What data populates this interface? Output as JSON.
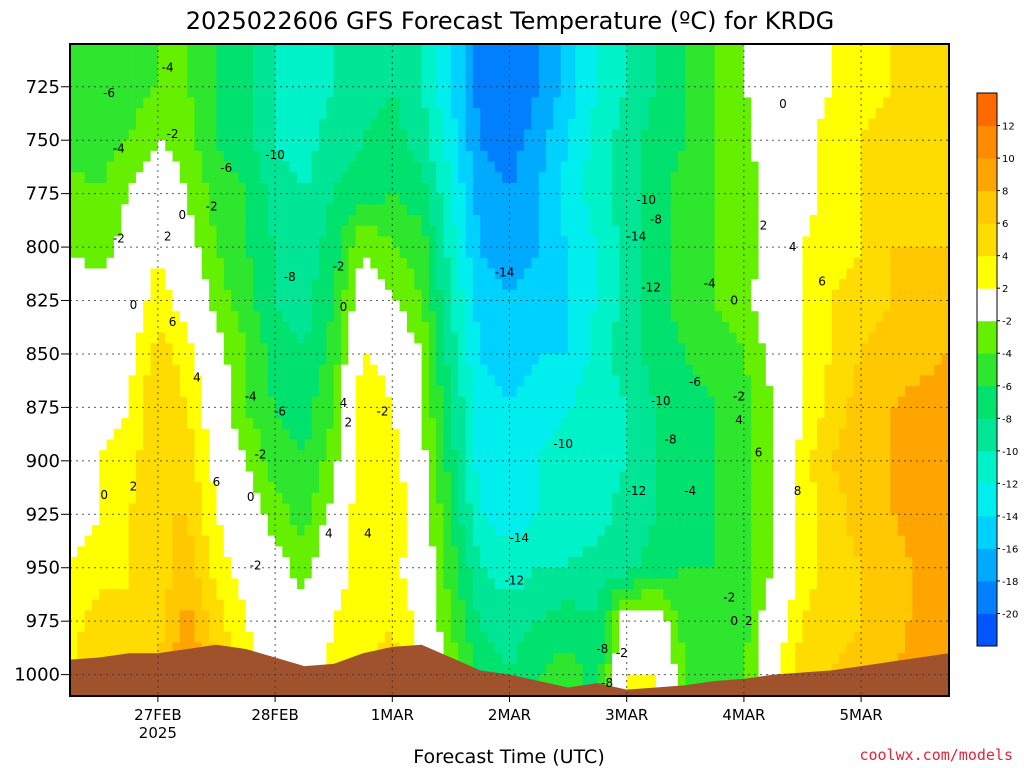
{
  "title": "2025022606 GFS Forecast Temperature (ºC) for KRDG",
  "credit": "coolwx.com/models",
  "chart_data": {
    "type": "heatmap",
    "title": "2025022606 GFS Forecast Temperature (ºC) for KRDG",
    "xlabel": "Forecast Time (UTC)",
    "ylabel": "",
    "yaxis": {
      "ticks": [
        "725",
        "750",
        "775",
        "800",
        "825",
        "850",
        "875",
        "900",
        "925",
        "950",
        "975",
        "1000"
      ],
      "range": [
        705,
        1010
      ],
      "inverted": true,
      "gridlines": true
    },
    "xaxis": {
      "ticks": [
        {
          "label": "27FEB",
          "sub": "2025",
          "t": 18
        },
        {
          "label": "28FEB",
          "sub": "",
          "t": 42
        },
        {
          "label": "1MAR",
          "sub": "",
          "t": 66
        },
        {
          "label": "2MAR",
          "sub": "",
          "t": 90
        },
        {
          "label": "3MAR",
          "sub": "",
          "t": 114
        },
        {
          "label": "4MAR",
          "sub": "",
          "t": 138
        },
        {
          "label": "5MAR",
          "sub": "",
          "t": 162
        }
      ],
      "range": [
        0,
        180
      ],
      "units": "hours since 2025-02-26 06 UTC",
      "gridlines": true
    },
    "colorbar": {
      "levels": [
        -20,
        -18,
        -16,
        -14,
        -12,
        -10,
        -8,
        -6,
        -4,
        -2,
        2,
        4,
        6,
        8,
        10,
        12
      ],
      "colors": [
        "#0055ff",
        "#0080ff",
        "#00aaff",
        "#00d2ff",
        "#00eeee",
        "#00f2c8",
        "#00e696",
        "#00e16e",
        "#2de62d",
        "#64f000",
        "#ffffff",
        "#ffff00",
        "#ffdc00",
        "#ffc800",
        "#ffa500",
        "#ff8c00",
        "#ff6a00"
      ]
    },
    "ground_color": "#a0522d",
    "series": [
      {
        "pressure": 725,
        "values": [
          -6,
          -6,
          -5,
          -4,
          -4,
          -6,
          -7,
          -10,
          -11,
          -10,
          -9,
          -8,
          -10,
          -14,
          -19,
          -20,
          -18,
          -15,
          -12,
          -10,
          -8,
          -6,
          -4,
          -2,
          0,
          1,
          2,
          3,
          4,
          5
        ]
      },
      {
        "pressure": 750,
        "values": [
          -5,
          -5,
          -4,
          -2,
          -3,
          -6,
          -7,
          -10,
          -11,
          -9,
          -8,
          -7,
          -9,
          -13,
          -18,
          -19,
          -17,
          -14,
          -11,
          -9,
          -7,
          -6,
          -4,
          -3,
          0,
          1,
          3,
          4,
          5,
          6
        ]
      },
      {
        "pressure": 775,
        "values": [
          -3,
          -4,
          -2,
          0,
          -2,
          -5,
          -6,
          -9,
          -10,
          -8,
          -7,
          -6,
          -7,
          -12,
          -17,
          -18,
          -16,
          -13,
          -11,
          -9,
          -7,
          -5,
          -4,
          -3,
          -1,
          1,
          3,
          4,
          5,
          6
        ]
      },
      {
        "pressure": 800,
        "values": [
          -2,
          -3,
          -1,
          2,
          -1,
          -4,
          -6,
          -8,
          -9,
          -7,
          -2,
          -4,
          -5,
          -11,
          -16,
          -17,
          -16,
          -14,
          -12,
          -9,
          -7,
          -5,
          -4,
          -3,
          -1,
          2,
          3,
          4,
          6,
          6
        ]
      },
      {
        "pressure": 825,
        "values": [
          -1,
          -1,
          0,
          3,
          1,
          -3,
          -5,
          -8,
          -9,
          -6,
          0,
          -2,
          -4,
          -10,
          -15,
          -16,
          -15,
          -14,
          -12,
          -9,
          -7,
          -5,
          -4,
          -3,
          0,
          2,
          4,
          5,
          6,
          7
        ]
      },
      {
        "pressure": 850,
        "values": [
          -1,
          0,
          1,
          5,
          3,
          -1,
          -4,
          -7,
          -8,
          -5,
          2,
          1,
          -2,
          -9,
          -14,
          -15,
          -14,
          -14,
          -11,
          -9,
          -7,
          -6,
          -5,
          -4,
          -1,
          2,
          4,
          6,
          7,
          8
        ]
      },
      {
        "pressure": 875,
        "values": [
          0,
          1,
          2,
          6,
          4,
          0,
          -4,
          -6,
          -7,
          -4,
          4,
          2,
          -2,
          -8,
          -13,
          -14,
          -13,
          -12,
          -11,
          -10,
          -8,
          -7,
          -6,
          -5,
          -2,
          2,
          5,
          7,
          8,
          9
        ]
      },
      {
        "pressure": 900,
        "values": [
          1,
          2,
          3,
          6,
          5,
          1,
          -2,
          -5,
          -6,
          -3,
          4,
          3,
          -1,
          -7,
          -13,
          -14,
          -12,
          -11,
          -11,
          -10,
          -8,
          -7,
          -6,
          -5,
          -2,
          3,
          6,
          7,
          8,
          9
        ]
      },
      {
        "pressure": 925,
        "values": [
          1,
          2,
          4,
          6,
          6,
          2,
          0,
          -3,
          -5,
          -1,
          4,
          4,
          0,
          -6,
          -12,
          -13,
          -12,
          -11,
          -11,
          -9,
          -8,
          -7,
          -6,
          -5,
          -2,
          3,
          5,
          7,
          8,
          9
        ]
      },
      {
        "pressure": 950,
        "values": [
          2,
          3,
          4,
          5,
          7,
          3,
          1,
          -1,
          -3,
          1,
          3,
          3,
          0,
          -5,
          -10,
          -11,
          -10,
          -10,
          -9,
          -9,
          -7,
          -6,
          -6,
          -5,
          -2,
          3,
          5,
          6,
          7,
          10
        ]
      },
      {
        "pressure": 975,
        "values": [
          3,
          5,
          4,
          5,
          9,
          5,
          2,
          0,
          -1,
          2,
          3,
          4,
          1,
          -4,
          -8,
          -9,
          -8,
          -7,
          -8,
          0,
          0,
          -5,
          -6,
          -5,
          0,
          4,
          5,
          6,
          7,
          10
        ]
      },
      {
        "pressure": 1000,
        "values": [
          4,
          6,
          5,
          6,
          10,
          6,
          3,
          1,
          0,
          3,
          4,
          5,
          2,
          -3,
          -7,
          -8,
          -6,
          -5,
          -7,
          2,
          2,
          -4,
          -5,
          -4,
          1,
          5,
          6,
          7,
          8,
          10
        ]
      }
    ],
    "series_times": [
      0,
      6,
      12,
      18,
      24,
      30,
      36,
      42,
      48,
      54,
      60,
      66,
      72,
      78,
      84,
      90,
      96,
      102,
      108,
      114,
      120,
      126,
      132,
      138,
      144,
      150,
      156,
      162,
      168,
      180
    ],
    "surface_pressure": [
      993,
      992,
      990,
      990,
      988,
      986,
      988,
      992,
      996,
      995,
      990,
      987,
      986,
      992,
      998,
      1000,
      1003,
      1006,
      1004,
      1007,
      1006,
      1005,
      1003,
      1002,
      1000,
      999,
      998,
      996,
      994,
      990
    ],
    "contour_labels": [
      {
        "text": "-6",
        "t": 8,
        "p": 728
      },
      {
        "text": "-4",
        "t": 20,
        "p": 716
      },
      {
        "text": "-2",
        "t": 21,
        "p": 747
      },
      {
        "text": "-4",
        "t": 10,
        "p": 754
      },
      {
        "text": "0",
        "t": 23,
        "p": 785
      },
      {
        "text": "2",
        "t": 20,
        "p": 795
      },
      {
        "text": "-2",
        "t": 29,
        "p": 781
      },
      {
        "text": "-6",
        "t": 32,
        "p": 763
      },
      {
        "text": "-10",
        "t": 42,
        "p": 757
      },
      {
        "text": "-2",
        "t": 10,
        "p": 796
      },
      {
        "text": "-8",
        "t": 45,
        "p": 814
      },
      {
        "text": "-2",
        "t": 55,
        "p": 809
      },
      {
        "text": "0",
        "t": 13,
        "p": 827
      },
      {
        "text": "6",
        "t": 21,
        "p": 835
      },
      {
        "text": "4",
        "t": 26,
        "p": 861
      },
      {
        "text": "0",
        "t": 56,
        "p": 828
      },
      {
        "text": "-4",
        "t": 37,
        "p": 870
      },
      {
        "text": "-6",
        "t": 43,
        "p": 877
      },
      {
        "text": "4",
        "t": 56,
        "p": 873
      },
      {
        "text": "2",
        "t": 57,
        "p": 882
      },
      {
        "text": "-2",
        "t": 64,
        "p": 877
      },
      {
        "text": "-2",
        "t": 39,
        "p": 897
      },
      {
        "text": "0",
        "t": 37,
        "p": 917
      },
      {
        "text": "2",
        "t": 13,
        "p": 912
      },
      {
        "text": "0",
        "t": 7,
        "p": 916
      },
      {
        "text": "6",
        "t": 30,
        "p": 910
      },
      {
        "text": "4",
        "t": 53,
        "p": 934
      },
      {
        "text": "4",
        "t": 61,
        "p": 934
      },
      {
        "text": "-2",
        "t": 38,
        "p": 949
      },
      {
        "text": "-14",
        "t": 89,
        "p": 812
      },
      {
        "text": "-14",
        "t": 92,
        "p": 936
      },
      {
        "text": "-12",
        "t": 91,
        "p": 956
      },
      {
        "text": "-10",
        "t": 101,
        "p": 892
      },
      {
        "text": "-14",
        "t": 116,
        "p": 795
      },
      {
        "text": "-10",
        "t": 118,
        "p": 778
      },
      {
        "text": "-8",
        "t": 120,
        "p": 787
      },
      {
        "text": "-12",
        "t": 119,
        "p": 819
      },
      {
        "text": "-4",
        "t": 131,
        "p": 817
      },
      {
        "text": "0",
        "t": 136,
        "p": 825
      },
      {
        "text": "-6",
        "t": 128,
        "p": 863
      },
      {
        "text": "-10",
        "t": 121,
        "p": 872
      },
      {
        "text": "-8",
        "t": 123,
        "p": 890
      },
      {
        "text": "-12",
        "t": 116,
        "p": 914
      },
      {
        "text": "-4",
        "t": 127,
        "p": 914
      },
      {
        "text": "0",
        "t": 146,
        "p": 733
      },
      {
        "text": "2",
        "t": 142,
        "p": 790
      },
      {
        "text": "4",
        "t": 148,
        "p": 800
      },
      {
        "text": "6",
        "t": 154,
        "p": 816
      },
      {
        "text": "-2",
        "t": 137,
        "p": 870
      },
      {
        "text": "4",
        "t": 137,
        "p": 881
      },
      {
        "text": "6",
        "t": 141,
        "p": 896
      },
      {
        "text": "8",
        "t": 149,
        "p": 914
      },
      {
        "text": "-2",
        "t": 135,
        "p": 964
      },
      {
        "text": "0",
        "t": 136,
        "p": 975
      },
      {
        "text": "2",
        "t": 139,
        "p": 975
      },
      {
        "text": "-8",
        "t": 109,
        "p": 988
      },
      {
        "text": "-2",
        "t": 113,
        "p": 990
      },
      {
        "text": "-8",
        "t": 110,
        "p": 1004
      }
    ]
  }
}
